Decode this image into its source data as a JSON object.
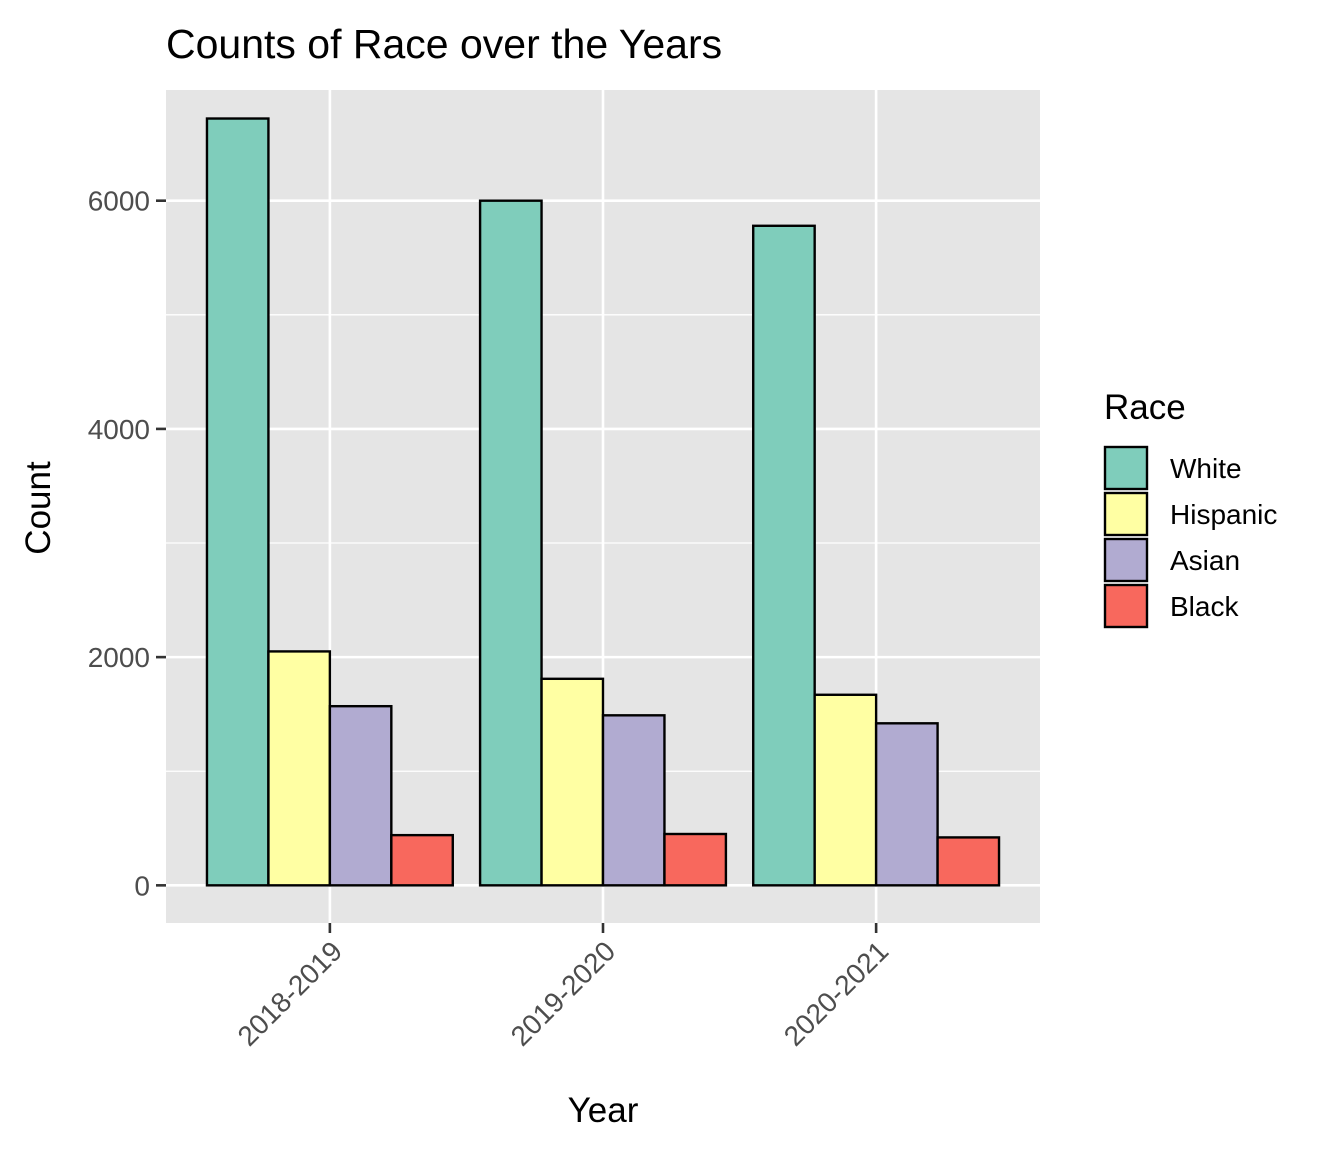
{
  "chart_data": {
    "type": "bar",
    "title": "Counts of Race over the Years",
    "xlabel": "Year",
    "ylabel": "Count",
    "categories": [
      "2018-2019",
      "2019-2020",
      "2020-2021"
    ],
    "series": [
      {
        "name": "White",
        "color": "#7fcdbb",
        "values": [
          6720,
          6000,
          5780
        ]
      },
      {
        "name": "Hispanic",
        "color": "#ffffa3",
        "values": [
          2050,
          1810,
          1670
        ]
      },
      {
        "name": "Asian",
        "color": "#b1abd1",
        "values": [
          1570,
          1490,
          1420
        ]
      },
      {
        "name": "Black",
        "color": "#f8685d",
        "values": [
          440,
          450,
          420
        ]
      }
    ],
    "ylim": [
      -330,
      6970
    ],
    "yticks": [
      0,
      2000,
      4000,
      6000
    ],
    "y_minor_ticks": [
      1000,
      3000,
      5000
    ],
    "grid": true,
    "legend": {
      "title": "Race",
      "position": "right"
    },
    "panel_color": "#e5e5e5"
  }
}
